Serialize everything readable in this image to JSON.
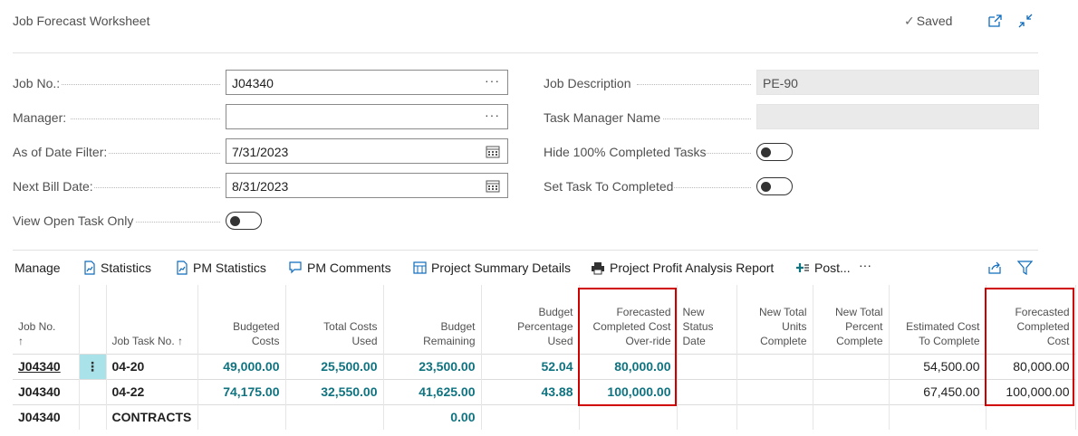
{
  "page": {
    "title": "Job Forecast Worksheet",
    "saved_label": "Saved"
  },
  "icons": {
    "saved": "checkmark-icon",
    "open_new": "open-in-new-window-icon",
    "collapse": "collapse-icon"
  },
  "form": {
    "job_no": {
      "label": "Job No.:",
      "value": "J04340"
    },
    "manager": {
      "label": "Manager:",
      "value": ""
    },
    "as_of_date_filter": {
      "label": "As of Date Filter:",
      "value": "7/31/2023"
    },
    "next_bill_date": {
      "label": "Next Bill Date:",
      "value": "8/31/2023"
    },
    "view_open_task_only": {
      "label": "View Open Task Only",
      "value": "off"
    },
    "job_description": {
      "label": "Job Description",
      "value": "PE-90"
    },
    "task_manager_name": {
      "label": "Task Manager Name",
      "value": ""
    },
    "hide_completed": {
      "label": "Hide 100% Completed Tasks",
      "value": "off"
    },
    "set_task_completed": {
      "label": "Set Task To Completed",
      "value": "off"
    },
    "ellipsis": "···"
  },
  "actionbar": {
    "manage": "Manage",
    "statistics": "Statistics",
    "pm_statistics": "PM Statistics",
    "pm_comments": "PM Comments",
    "project_summary": "Project Summary Details",
    "project_profit": "Project Profit Analysis Report",
    "post": "Post...",
    "more": "···"
  },
  "grid": {
    "headers": {
      "job_no": [
        "Job No.",
        "↑"
      ],
      "job_task_no": "Job Task No. ↑",
      "budgeted_costs": [
        "Budgeted",
        "Costs"
      ],
      "total_costs_used": [
        "Total Costs",
        "Used"
      ],
      "budget_remaining": [
        "Budget",
        "Remaining"
      ],
      "budget_pct_used": [
        "Budget",
        "Percentage",
        "Used"
      ],
      "forecasted_override": [
        "Forecasted",
        "Completed Cost",
        "Over-ride"
      ],
      "new_status_date": [
        "New",
        "Status",
        "Date"
      ],
      "new_total_units": [
        "New Total",
        "Units",
        "Complete"
      ],
      "new_total_percent": [
        "New Total",
        "Percent",
        "Complete"
      ],
      "estimated_cost": [
        "Estimated Cost",
        "To Complete"
      ],
      "forecasted_completed_cost": [
        "Forecasted",
        "Completed",
        "Cost"
      ]
    },
    "rows": [
      {
        "job_no": "J04340",
        "menu": "⋮",
        "job_task_no": "04-20",
        "budgeted_costs": "49,000.00",
        "total_costs_used": "25,500.00",
        "budget_remaining": "23,500.00",
        "budget_pct_used": "52.04",
        "forecasted_override": "80,000.00",
        "new_status_date": "",
        "new_total_units": "",
        "new_total_percent": "",
        "estimated_cost": "54,500.00",
        "forecasted_completed_cost": "80,000.00"
      },
      {
        "job_no": "J04340",
        "menu": "",
        "job_task_no": "04-22",
        "budgeted_costs": "74,175.00",
        "total_costs_used": "32,550.00",
        "budget_remaining": "41,625.00",
        "budget_pct_used": "43.88",
        "forecasted_override": "100,000.00",
        "new_status_date": "",
        "new_total_units": "",
        "new_total_percent": "",
        "estimated_cost": "67,450.00",
        "forecasted_completed_cost": "100,000.00"
      },
      {
        "job_no": "J04340",
        "menu": "",
        "job_task_no": "CONTRACTS",
        "budgeted_costs": "",
        "total_costs_used": "",
        "budget_remaining": "0.00",
        "budget_pct_used": "",
        "forecasted_override": "",
        "new_status_date": "",
        "new_total_units": "",
        "new_total_percent": "",
        "estimated_cost": "",
        "forecasted_completed_cost": ""
      }
    ]
  },
  "colors": {
    "accent_teal": "#0f7380",
    "highlight_red": "#d10000",
    "selected_cell": "#a9e3e9"
  }
}
